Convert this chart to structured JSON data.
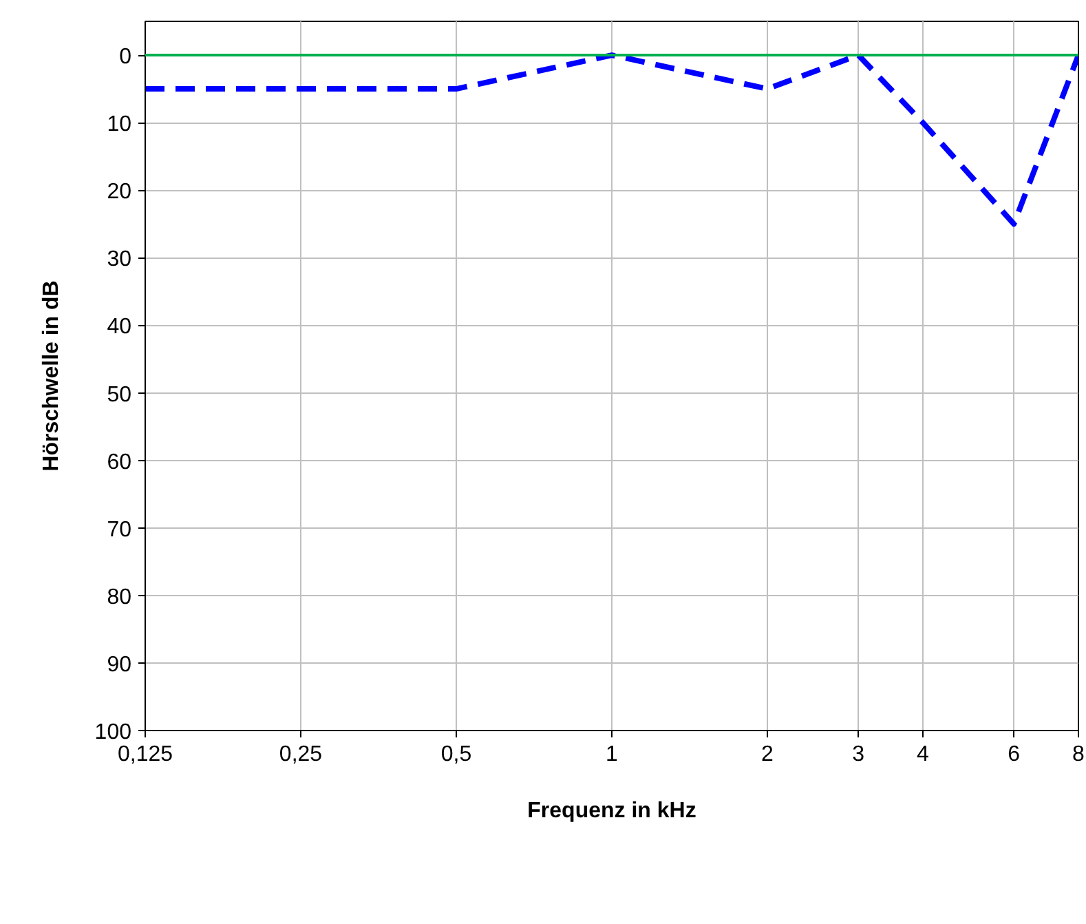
{
  "chart_data": {
    "type": "line",
    "xlabel": "Frequenz in kHz",
    "ylabel": "Hörschwelle in dB",
    "log": "x",
    "x": [
      0.125,
      0.25,
      0.5,
      1,
      2,
      3,
      4,
      6,
      8
    ],
    "series": [
      {
        "color": "#0000ff",
        "values": [
          5,
          5,
          5,
          0,
          5,
          0,
          10,
          25,
          0
        ],
        "line_style": "dashed"
      }
    ],
    "xlim": [
      0.125,
      8
    ],
    "xticks": [
      {
        "value": 0.125,
        "label": "0,125"
      },
      {
        "value": 0.25,
        "label": "0,25"
      },
      {
        "value": 0.5,
        "label": "0,5"
      },
      1,
      2,
      3,
      4,
      6,
      8
    ],
    "ylim": [
      100,
      -5
    ],
    "yticks": [
      0,
      10,
      20,
      30,
      40,
      50,
      60,
      70,
      80,
      90,
      100
    ],
    "ref_lines": [
      {
        "axis": "y",
        "value": 0,
        "color": "#00b050",
        "line_style": "solid"
      }
    ],
    "grid": true,
    "marker": "none"
  }
}
